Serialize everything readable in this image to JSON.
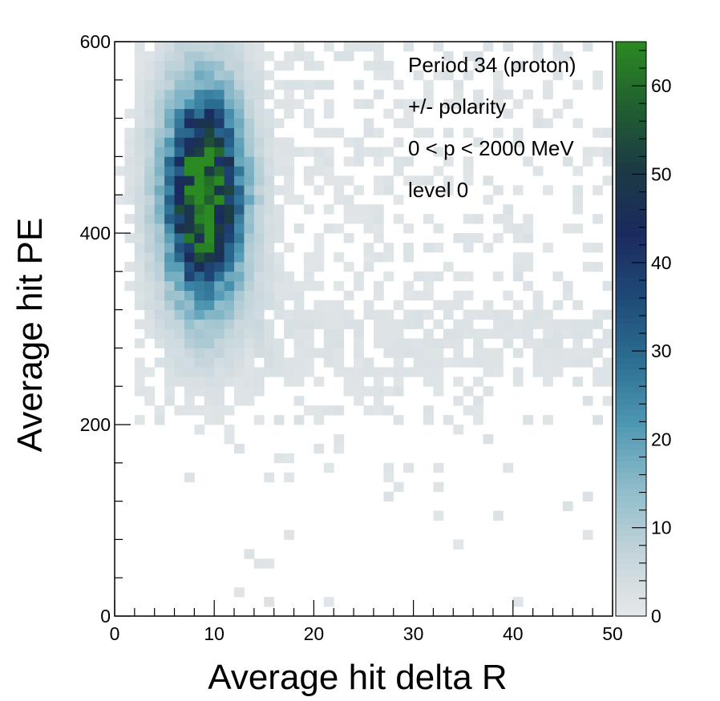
{
  "chart_data": {
    "type": "heatmap",
    "title": "",
    "xlabel": "Average hit delta R",
    "ylabel": "Average hit PE",
    "xlim": [
      0,
      50
    ],
    "ylim": [
      0,
      600
    ],
    "x_ticks": [
      0,
      10,
      20,
      30,
      40,
      50
    ],
    "y_ticks": [
      0,
      200,
      400,
      600
    ],
    "x_tick_labels": [
      "0",
      "10",
      "20",
      "30",
      "40",
      "50"
    ],
    "y_tick_labels": [
      "0",
      "200",
      "400",
      "600"
    ],
    "bins": {
      "nx": 50,
      "ny": 60,
      "x_width": 1,
      "y_width": 10
    },
    "zlim": [
      0,
      65
    ],
    "z_ticks": [
      0,
      10,
      20,
      30,
      40,
      50,
      60
    ],
    "z_tick_labels": [
      "0",
      "10",
      "20",
      "30",
      "40",
      "50",
      "60"
    ],
    "colormap": [
      "#e6e8ea",
      "#c3d4da",
      "#8fbccb",
      "#4f98b3",
      "#2c6f93",
      "#1f4a78",
      "#1a2a5e",
      "#1c3a45",
      "#215f30",
      "#2b8a22"
    ],
    "grid": false,
    "legend": "colorbar-right",
    "annotations": [
      "Period 34 (proton)",
      "+/- polarity",
      "0 < p < 2000 MeV",
      "level 0"
    ],
    "regions": [
      {
        "shape": "gaussian",
        "x_center": 9,
        "y_center": 440,
        "x_sigma": 2.3,
        "y_sigma": 65,
        "peak": 62
      },
      {
        "shape": "gaussian",
        "x_center": 9,
        "y_center": 440,
        "x_sigma": 4.0,
        "y_sigma": 115,
        "peak": 12
      },
      {
        "shape": "band",
        "x_range": [
          14,
          50
        ],
        "y_center": 290,
        "y_sigma": 45,
        "level": 2.2
      },
      {
        "shape": "background",
        "x_range": [
          2,
          50
        ],
        "y_range": [
          200,
          600
        ],
        "level": 1
      },
      {
        "shape": "sparse",
        "x_range": [
          3,
          48
        ],
        "y_range": [
          0,
          200
        ],
        "level": 1,
        "occupancy": 0.04
      }
    ]
  }
}
